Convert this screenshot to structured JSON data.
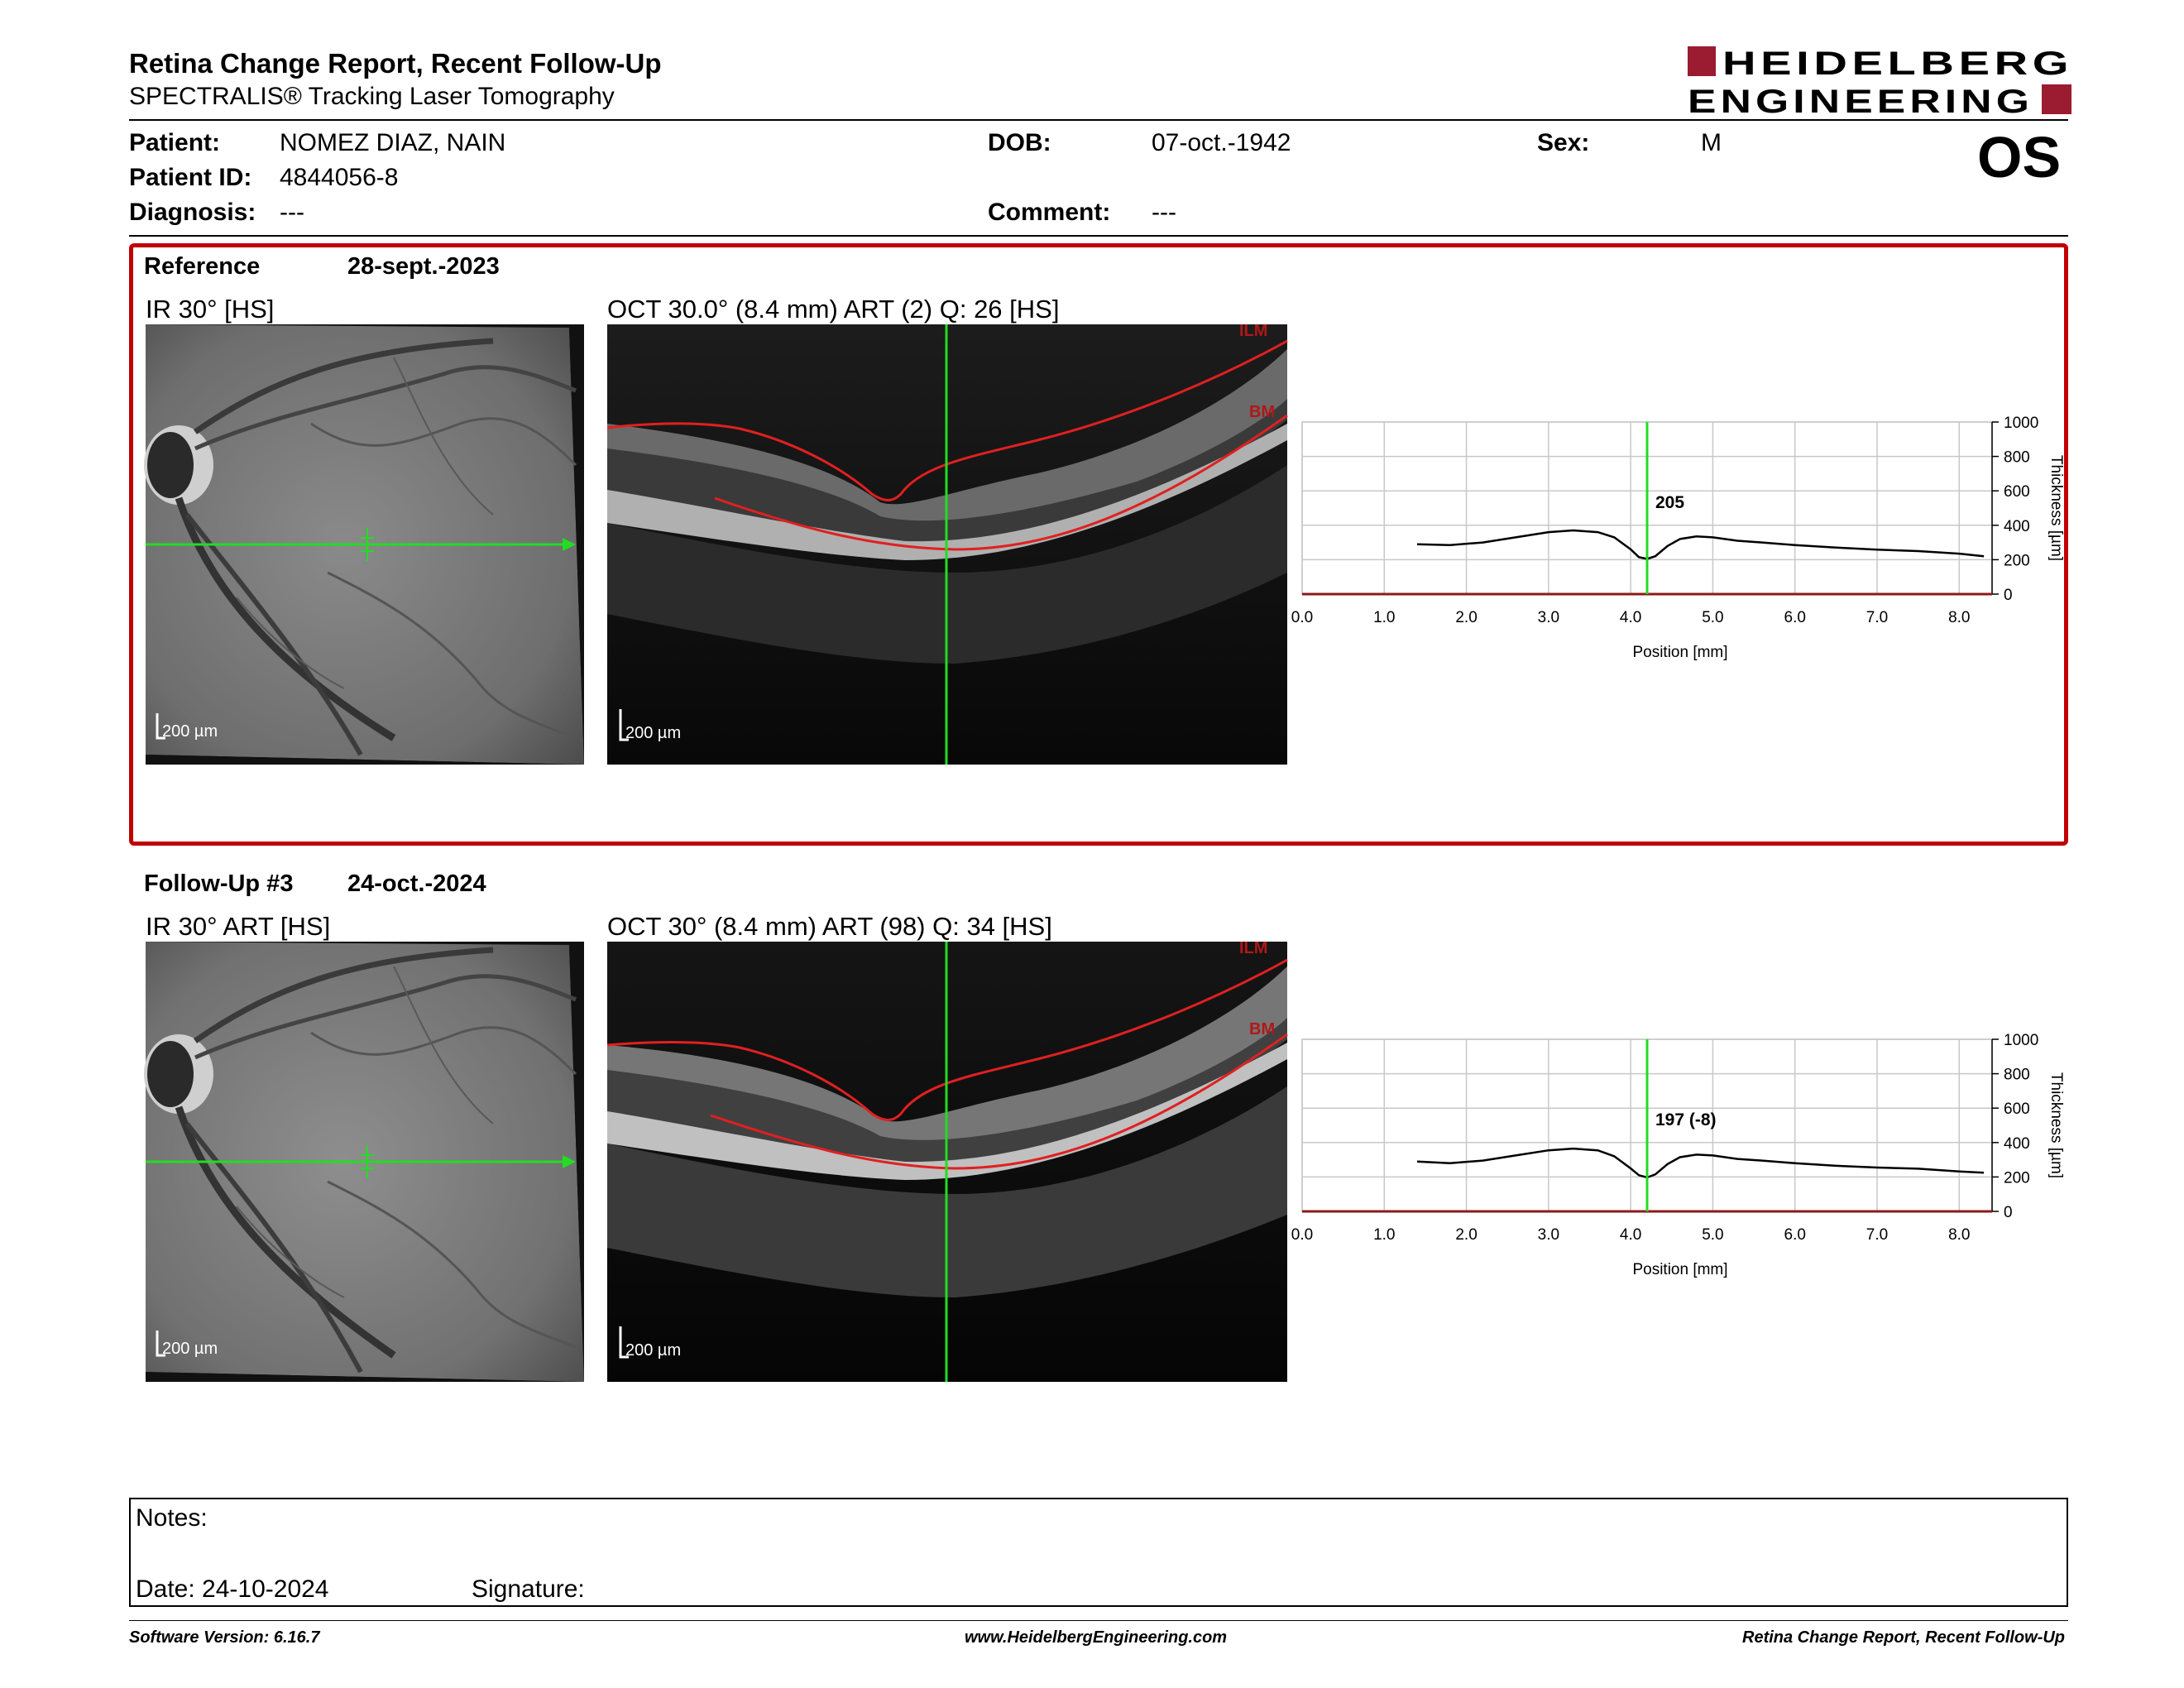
{
  "header": {
    "title": "Retina Change Report, Recent Follow-Up",
    "subtitle": "SPECTRALIS® Tracking Laser Tomography",
    "logo_line1": "HEIDELBERG",
    "logo_line2": "ENGINEERING",
    "brand_color": "#9b1b30"
  },
  "patient": {
    "patient_label": "Patient:",
    "patient_value": "NOMEZ DIAZ, NAIN",
    "id_label": "Patient ID:",
    "id_value": "4844056-8",
    "diagnosis_label": "Diagnosis:",
    "diagnosis_value": "---",
    "dob_label": "DOB:",
    "dob_value": "07-oct.-1942",
    "comment_label": "Comment:",
    "comment_value": "---",
    "sex_label": "Sex:",
    "sex_value": "M",
    "eye": "OS"
  },
  "reference": {
    "label": "Reference",
    "date": "28-sept.-2023",
    "ir_label": "IR 30° [HS]",
    "oct_label": "OCT 30.0° (8.4 mm) ART (2) Q: 26 [HS]",
    "scale": "200 µm",
    "ilm": "ILM",
    "bm": "BM",
    "box_color": "#c00000"
  },
  "followup": {
    "label": "Follow-Up #3",
    "date": "24-oct.-2024",
    "ir_label": "IR 30° ART [HS]",
    "oct_label": "OCT 30° (8.4 mm) ART (98) Q: 34 [HS]",
    "scale": "200 µm",
    "ilm": "ILM",
    "bm": "BM"
  },
  "chart_data": [
    {
      "type": "line",
      "xlabel": "Position [mm]",
      "ylabel": "Thickness [µm]",
      "xlim": [
        0,
        8.4
      ],
      "ylim": [
        0,
        1000
      ],
      "xticks": [
        "0.0",
        "1.0",
        "2.0",
        "3.0",
        "4.0",
        "5.0",
        "6.0",
        "7.0",
        "8.0"
      ],
      "yticks": [
        "0",
        "200",
        "400",
        "600",
        "800",
        "1000"
      ],
      "grid": true,
      "cursor_x": 4.2,
      "cursor_label": "205",
      "series": [
        {
          "x": [
            1.4,
            1.8,
            2.2,
            2.6,
            3.0,
            3.3,
            3.6,
            3.8,
            4.0,
            4.1,
            4.2,
            4.3,
            4.45,
            4.6,
            4.8,
            5.0,
            5.3,
            5.6,
            6.0,
            6.5,
            7.0,
            7.5,
            8.0,
            8.3
          ],
          "y": [
            290,
            285,
            300,
            330,
            360,
            370,
            360,
            330,
            260,
            215,
            205,
            220,
            280,
            320,
            335,
            330,
            310,
            300,
            285,
            270,
            258,
            250,
            235,
            220
          ]
        }
      ]
    },
    {
      "type": "line",
      "xlabel": "Position [mm]",
      "ylabel": "Thickness [µm]",
      "xlim": [
        0,
        8.4
      ],
      "ylim": [
        0,
        1000
      ],
      "xticks": [
        "0.0",
        "1.0",
        "2.0",
        "3.0",
        "4.0",
        "5.0",
        "6.0",
        "7.0",
        "8.0"
      ],
      "yticks": [
        "0",
        "200",
        "400",
        "600",
        "800",
        "1000"
      ],
      "grid": true,
      "cursor_x": 4.2,
      "cursor_label": "197 (-8)",
      "series": [
        {
          "x": [
            1.4,
            1.8,
            2.2,
            2.6,
            3.0,
            3.3,
            3.6,
            3.8,
            4.0,
            4.1,
            4.2,
            4.3,
            4.45,
            4.6,
            4.8,
            5.0,
            5.3,
            5.6,
            6.0,
            6.5,
            7.0,
            7.5,
            8.0,
            8.3
          ],
          "y": [
            290,
            280,
            295,
            325,
            355,
            365,
            355,
            320,
            250,
            210,
            197,
            215,
            275,
            315,
            330,
            325,
            305,
            295,
            280,
            265,
            255,
            248,
            232,
            225
          ]
        }
      ]
    }
  ],
  "notes": {
    "notes_label": "Notes:",
    "date_label": "Date: 24-10-2024",
    "signature_label": "Signature:"
  },
  "footer": {
    "software": "Software Version: 6.16.7",
    "website": "www.HeidelbergEngineering.com",
    "report": "Retina Change Report, Recent Follow-Up"
  }
}
